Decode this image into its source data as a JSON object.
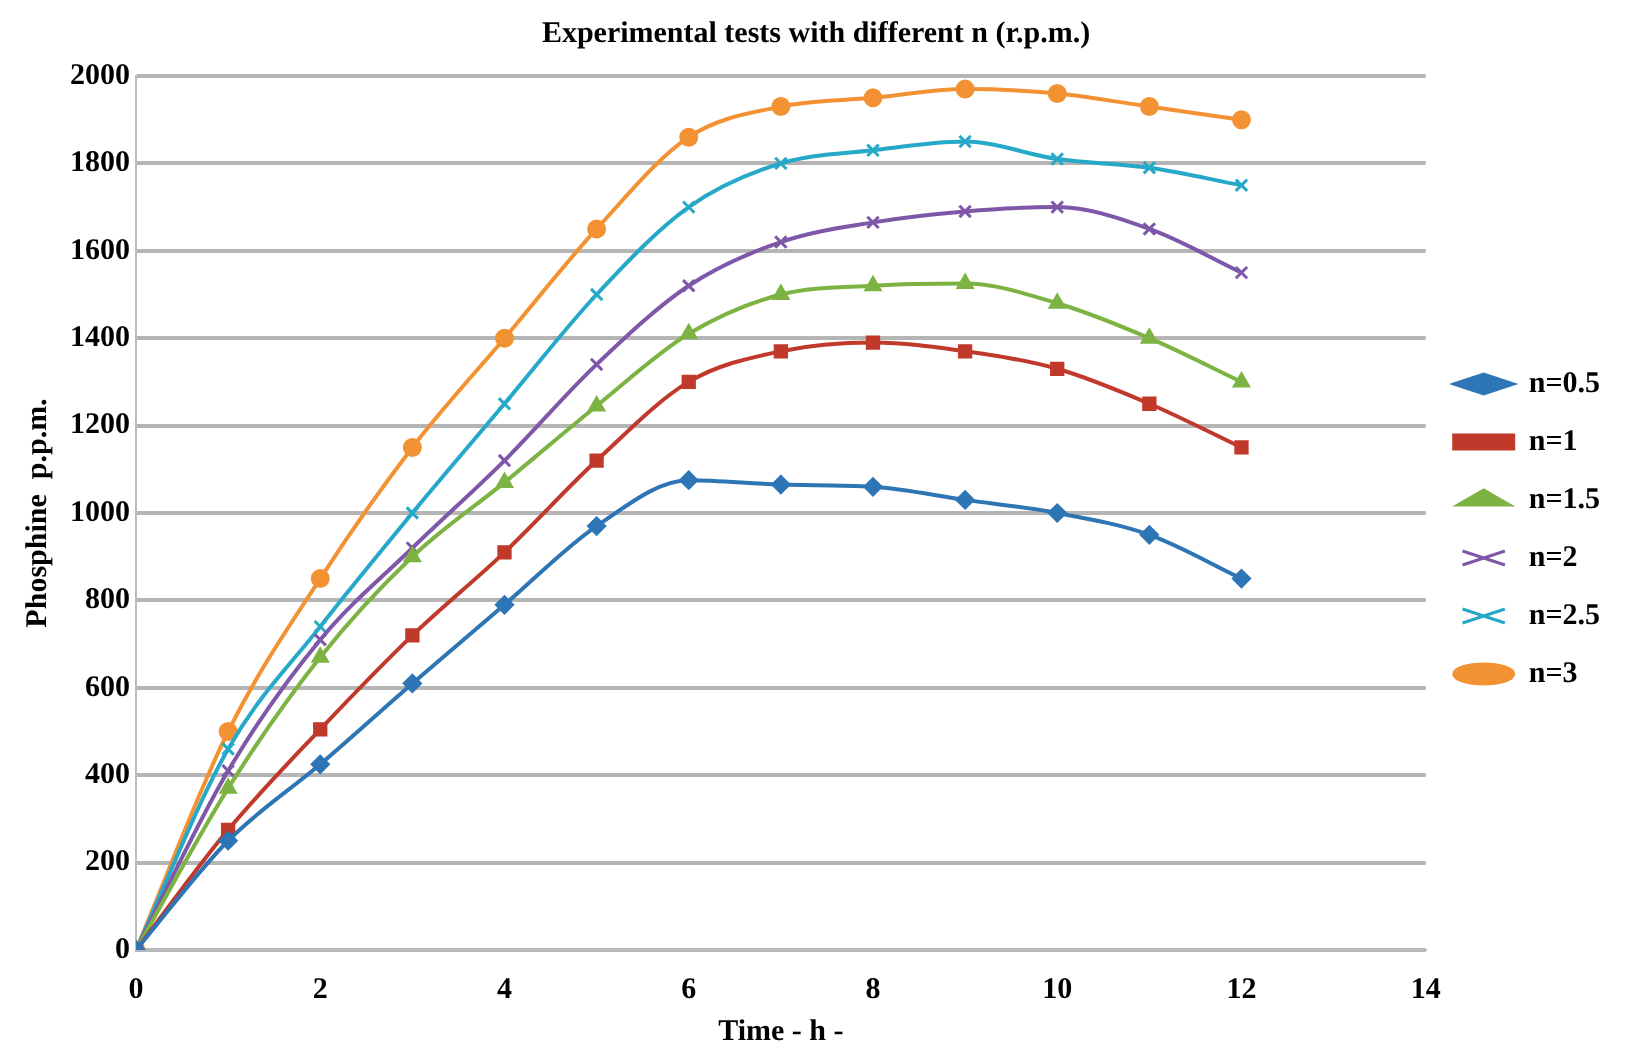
{
  "chart_data": {
    "type": "line",
    "title": "Experimental tests with different n (r.p.m.)",
    "xlabel": "Time - h -",
    "ylabel": "Phosphine  p.p.m.",
    "x": [
      0,
      1,
      2,
      3,
      4,
      5,
      6,
      7,
      8,
      9,
      10,
      11,
      12
    ],
    "series": [
      {
        "name": "n=0.5",
        "color": "#2e75b6",
        "marker": "diamond",
        "values": [
          0,
          250,
          425,
          610,
          790,
          970,
          1075,
          1065,
          1060,
          1030,
          1000,
          950,
          850
        ]
      },
      {
        "name": "n=1",
        "color": "#c0392b",
        "marker": "square",
        "values": [
          0,
          275,
          505,
          720,
          910,
          1120,
          1300,
          1370,
          1390,
          1370,
          1330,
          1250,
          1150
        ]
      },
      {
        "name": "n=1.5",
        "color": "#7cb342",
        "marker": "triangle",
        "values": [
          0,
          370,
          670,
          900,
          1070,
          1245,
          1410,
          1500,
          1520,
          1525,
          1480,
          1400,
          1300
        ]
      },
      {
        "name": "n=2",
        "color": "#7e57a8",
        "marker": "cross",
        "values": [
          0,
          410,
          710,
          920,
          1120,
          1340,
          1520,
          1620,
          1665,
          1690,
          1700,
          1650,
          1550
        ]
      },
      {
        "name": "n=2.5",
        "color": "#26a9c9",
        "marker": "cross",
        "values": [
          0,
          460,
          740,
          1000,
          1250,
          1500,
          1700,
          1800,
          1830,
          1850,
          1810,
          1790,
          1750
        ]
      },
      {
        "name": "n=3",
        "color": "#f39233",
        "marker": "circle",
        "values": [
          0,
          500,
          850,
          1150,
          1400,
          1650,
          1860,
          1930,
          1950,
          1970,
          1960,
          1930,
          1900
        ]
      }
    ],
    "xlim": [
      0,
      14
    ],
    "xticks": [
      0,
      2,
      4,
      6,
      8,
      10,
      12,
      14
    ],
    "ylim": [
      0,
      2000
    ],
    "yticks": [
      0,
      200,
      400,
      600,
      800,
      1000,
      1200,
      1400,
      1600,
      1800,
      2000
    ],
    "grid": "y",
    "legend": "right"
  }
}
